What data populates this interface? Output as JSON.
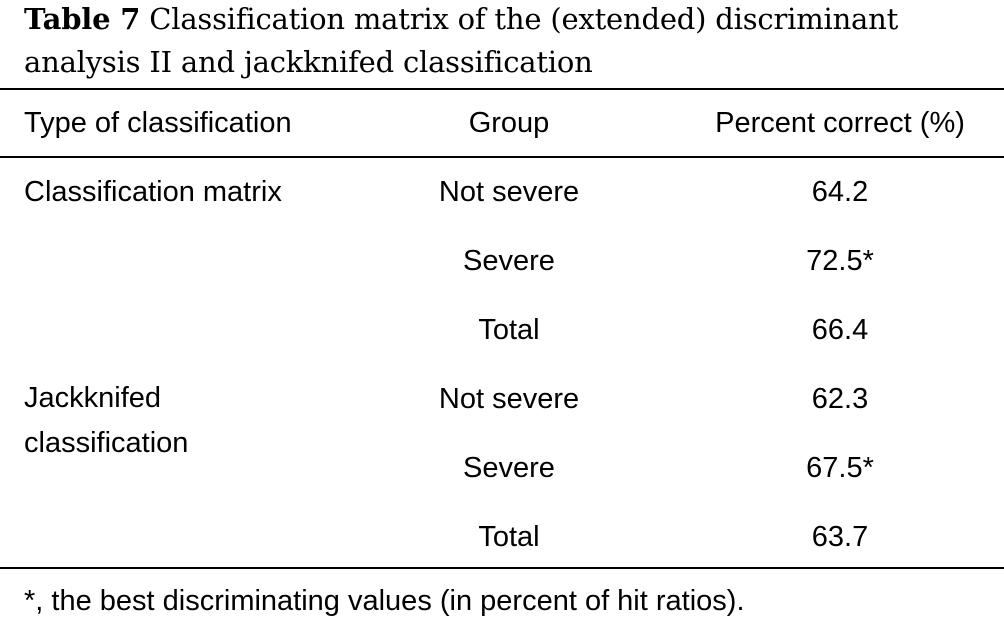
{
  "caption": {
    "label": "Table 7",
    "text": "Classification matrix of the (extended) discriminant analysis II and jackknifed classification"
  },
  "table": {
    "headers": [
      "Type of classification",
      "Group",
      "Percent correct (%)"
    ],
    "sections": [
      {
        "type": "Classification matrix",
        "rows": [
          {
            "group": "Not severe",
            "percent": "64.2"
          },
          {
            "group": "Severe",
            "percent": "72.5*"
          },
          {
            "group": "Total",
            "percent": "66.4"
          }
        ]
      },
      {
        "type": "Jackknifed classification",
        "rows": [
          {
            "group": "Not severe",
            "percent": "62.3"
          },
          {
            "group": "Severe",
            "percent": "67.5*"
          },
          {
            "group": "Total",
            "percent": "63.7"
          }
        ]
      }
    ]
  },
  "footnote": "*, the best discriminating values (in percent of hit ratios)."
}
